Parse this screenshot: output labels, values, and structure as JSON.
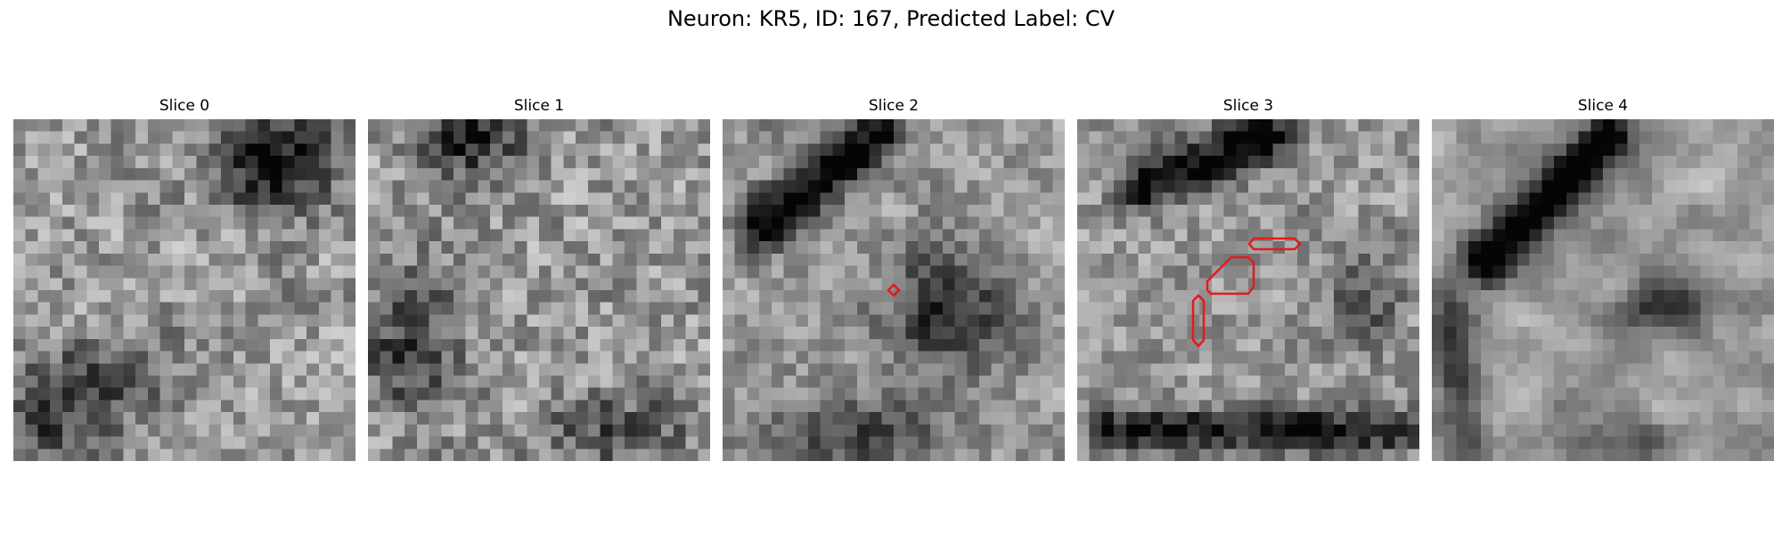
{
  "figure": {
    "title": "Neuron: KR5, ID: 167, Predicted Label: CV",
    "contour_color": "#e41a1c",
    "colormap": "gray"
  },
  "slices": [
    {
      "title": "Slice 0",
      "seed": 11,
      "smooth": 0.25,
      "dark_blob": "top-right",
      "has_contour": false
    },
    {
      "title": "Slice 1",
      "seed": 23,
      "smooth": 0.2,
      "dark_blob": "top-center",
      "has_contour": false
    },
    {
      "title": "Slice 2",
      "seed": 37,
      "smooth": 0.45,
      "dark_blob": "diagonal-top-left",
      "has_contour": true
    },
    {
      "title": "Slice 3",
      "seed": 53,
      "smooth": 0.35,
      "dark_blob": "top-and-bottom",
      "has_contour": true
    },
    {
      "title": "Slice 4",
      "seed": 71,
      "smooth": 0.75,
      "dark_blob": "diagonal-band-and-right-oval",
      "has_contour": false
    }
  ]
}
